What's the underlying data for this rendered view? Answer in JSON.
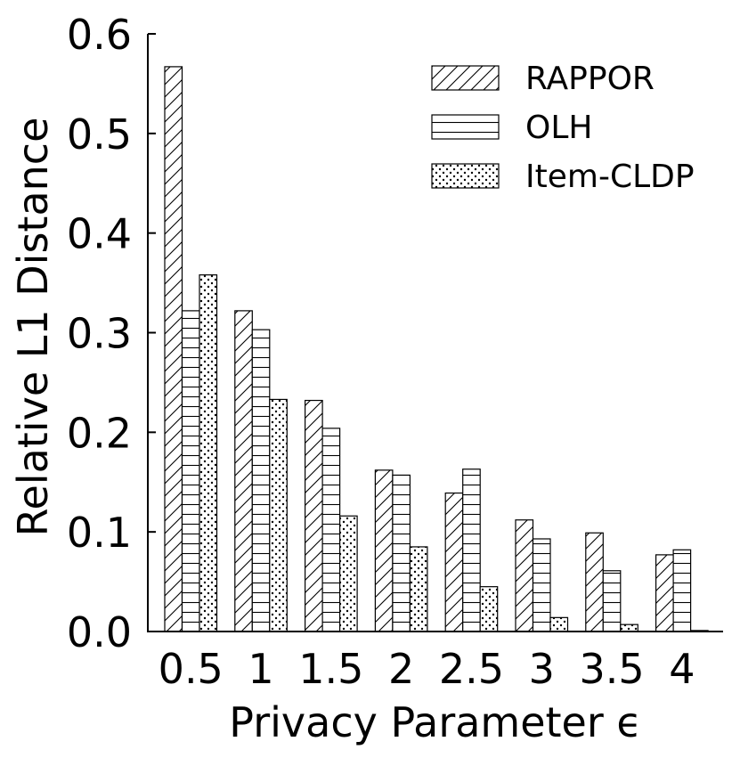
{
  "chart_data": {
    "type": "bar",
    "xlabel": "Privacy Parameter ϵ",
    "ylabel": "Relative L1 Distance",
    "categories": [
      "0.5",
      "1",
      "1.5",
      "2",
      "2.5",
      "3",
      "3.5",
      "4"
    ],
    "ylim": [
      0.0,
      0.6
    ],
    "yticks": [
      "0.0",
      "0.1",
      "0.2",
      "0.3",
      "0.4",
      "0.5",
      "0.6"
    ],
    "grid": false,
    "legend_position": "top-right",
    "series": [
      {
        "name": "RAPPOR",
        "pattern": "diagonal-hatch",
        "values": [
          0.567,
          0.322,
          0.232,
          0.162,
          0.139,
          0.112,
          0.099,
          0.077
        ]
      },
      {
        "name": "OLH",
        "pattern": "horizontal-hatch",
        "values": [
          0.322,
          0.303,
          0.204,
          0.157,
          0.163,
          0.093,
          0.061,
          0.082
        ]
      },
      {
        "name": "Item-CLDP",
        "pattern": "dots",
        "values": [
          0.358,
          0.233,
          0.116,
          0.085,
          0.045,
          0.014,
          0.007,
          0.001
        ]
      }
    ],
    "colors": {
      "bar_fill": "#ffffff",
      "bar_stroke": "#000000"
    }
  }
}
